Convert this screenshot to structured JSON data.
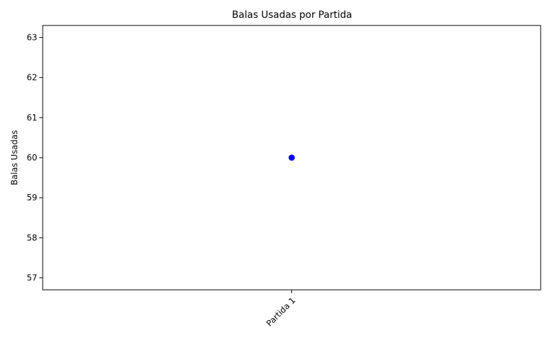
{
  "chart_data": {
    "type": "scatter",
    "title": "Balas Usadas por Partida",
    "xlabel": "",
    "ylabel": "Balas Usadas",
    "categories": [
      "Partida 1"
    ],
    "values": [
      60
    ],
    "ylim": [
      56.7,
      63.3
    ],
    "yticks": [
      57,
      58,
      59,
      60,
      61,
      62,
      63
    ],
    "x_tick_rotation": 45,
    "grid": false,
    "legend": "none",
    "colors": {
      "marker": "#0000ff",
      "axes": "#000000",
      "background": "#ffffff"
    }
  }
}
